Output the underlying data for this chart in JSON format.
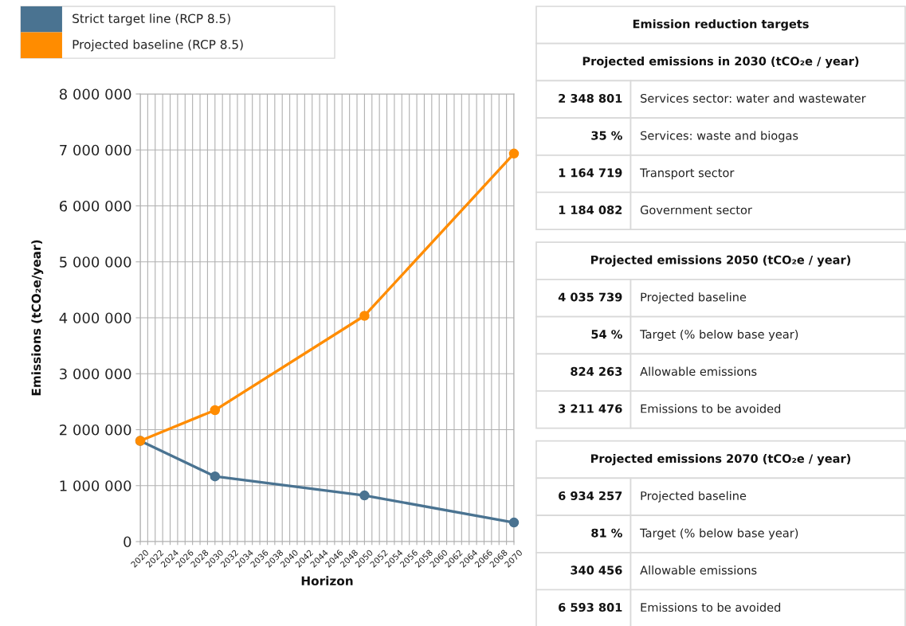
{
  "chart_data": [
    {
      "type": "line",
      "xlabel": "Horizon",
      "ylabel": "Emissions (tCO₂e/year)",
      "x": [
        2020,
        2030,
        2050,
        2070
      ],
      "series": [
        {
          "name": "Strict target line (RCP 8.5)",
          "color": "#4a7391",
          "values": [
            1800000,
            1164719,
            824263,
            340456
          ]
        },
        {
          "name": "Projected baseline (RCP 8.5)",
          "color": "#ff8c00",
          "values": [
            1800000,
            2348801,
            4035739,
            6934257
          ]
        }
      ],
      "xlim": [
        2020,
        2070
      ],
      "ylim": [
        0,
        8000000
      ],
      "xticks": [
        2020,
        {
          "value": 2021,
          "label": null
        },
        2022,
        {
          "value": 2023,
          "label": null
        },
        2024,
        {
          "value": 2025,
          "label": null
        },
        2026,
        {
          "value": 2027,
          "label": null
        },
        2028,
        {
          "value": 2029,
          "label": null
        },
        2030,
        {
          "value": 2031,
          "label": null
        },
        2032,
        {
          "value": 2033,
          "label": null
        },
        2034,
        {
          "value": 2035,
          "label": null
        },
        2036,
        {
          "value": 2037,
          "label": null
        },
        2038,
        {
          "value": 2039,
          "label": null
        },
        2040,
        {
          "value": 2041,
          "label": null
        },
        2042,
        {
          "value": 2043,
          "label": null
        },
        2044,
        {
          "value": 2045,
          "label": null
        },
        2046,
        {
          "value": 2047,
          "label": null
        },
        2048,
        {
          "value": 2049,
          "label": null
        },
        2050,
        {
          "value": 2051,
          "label": null
        },
        2052,
        {
          "value": 2053,
          "label": null
        },
        2054,
        {
          "value": 2055,
          "label": null
        },
        2056,
        {
          "value": 2057,
          "label": null
        },
        2058,
        {
          "value": 2059,
          "label": null
        },
        2060,
        {
          "value": 2061,
          "label": null
        },
        2062,
        {
          "value": 2063,
          "label": null
        },
        2064,
        {
          "value": 2065,
          "label": null
        },
        2066,
        {
          "value": 2067,
          "label": null
        },
        2068,
        {
          "value": 2069,
          "label": null
        },
        2070
      ],
      "yticks": [
        0,
        {
          "value": 1000000,
          "label": "1 000 000"
        },
        {
          "value": 2000000,
          "label": "2 000 000"
        },
        {
          "value": 3000000,
          "label": "3 000 000"
        },
        {
          "value": 4000000,
          "label": "4 000 000"
        },
        {
          "value": 5000000,
          "label": "5 000 000"
        },
        {
          "value": 6000000,
          "label": "6 000 000"
        },
        {
          "value": 7000000,
          "label": "7 000 000"
        },
        {
          "value": 8000000,
          "label": "8 000 000"
        }
      ],
      "grid": true,
      "legend": "top left",
      "marker": "circle",
      "line_style": "solid"
    },
    {
      "type": "other",
      "title": "Emission reduction targets",
      "subtitle": "Projected emissions in 2030 (tCO₂e / year)",
      "annotations": [
        "2 348 801",
        "Services sector: water and wastewater",
        "35 %",
        "Services: waste and biogas",
        "1 164 719",
        "Transport sector",
        "1 184 082",
        "Government sector"
      ]
    },
    {
      "type": "other",
      "title": "Projected emissions 2050 (tCO₂e / year)",
      "annotations": [
        "4 035 739",
        "Projected baseline",
        "54 %",
        "Target (% below base year)",
        "824 263",
        "Allowable emissions",
        "3 211 476",
        "Emissions to be avoided"
      ]
    },
    {
      "type": "other",
      "title": "Projected emissions 2070 (tCO₂e / year)",
      "annotations": [
        "6 934 257",
        "Projected baseline",
        "81 %",
        "Target (% below base year)",
        "340 456",
        "Allowable emissions",
        "6 593 801",
        "Emissions to be avoided"
      ]
    }
  ]
}
